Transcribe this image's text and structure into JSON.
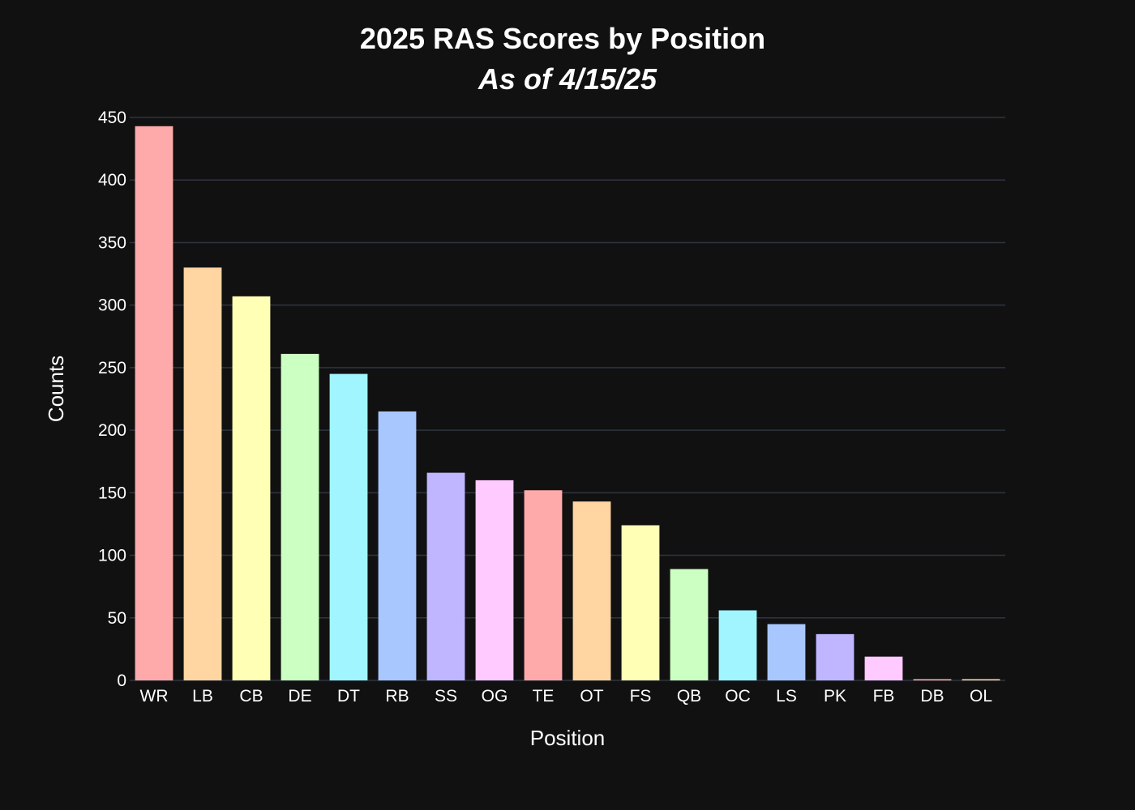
{
  "chart_data": {
    "type": "bar",
    "title": "2025 RAS Scores by Position",
    "subtitle": "As of 4/15/25",
    "xlabel": "Position",
    "ylabel": "Counts",
    "ylim": [
      0,
      450
    ],
    "yticks": [
      0,
      50,
      100,
      150,
      200,
      250,
      300,
      350,
      400,
      450
    ],
    "grid": true,
    "categories": [
      "WR",
      "LB",
      "CB",
      "DE",
      "DT",
      "RB",
      "SS",
      "OG",
      "TE",
      "OT",
      "FS",
      "QB",
      "OC",
      "LS",
      "PK",
      "FB",
      "DB",
      "OL"
    ],
    "values": [
      443,
      330,
      307,
      261,
      245,
      215,
      166,
      160,
      152,
      143,
      124,
      89,
      56,
      45,
      37,
      19,
      1,
      1
    ],
    "colors": [
      "#ffaaaa",
      "#ffd5a2",
      "#ffffb5",
      "#ccffc2",
      "#a0f5ff",
      "#a8c7ff",
      "#c0b6ff",
      "#ffcaff",
      "#ffaaaa",
      "#ffd5a2",
      "#ffffb5",
      "#ccffc2",
      "#a0f5ff",
      "#a8c7ff",
      "#c0b6ff",
      "#ffcaff",
      "#ffaaaa",
      "#ffd5a2"
    ],
    "background": "#111111",
    "grid_color": "#2e3541"
  }
}
